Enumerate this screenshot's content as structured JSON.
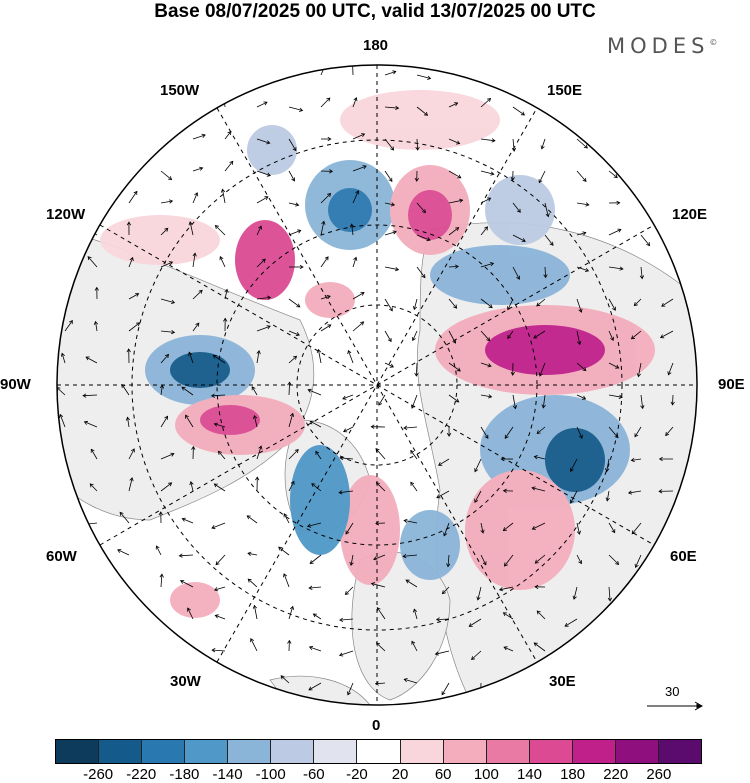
{
  "title": "Base 08/07/2025 00 UTC, valid 13/07/2025 00 UTC",
  "brand": "MODES",
  "brand_mark": "©",
  "longitude_labels": {
    "north": "180",
    "ne": "150E",
    "e1": "120E",
    "east": "90E",
    "e2": "60E",
    "se": "30E",
    "south": "0",
    "sw": "30W",
    "w2": "60W",
    "west": "90W",
    "w1": "120W",
    "nw": "150W"
  },
  "reference_vector": "30",
  "colorbar": {
    "ticks": [
      "-260",
      "-220",
      "-180",
      "-140",
      "-100",
      "-60",
      "-20",
      "20",
      "60",
      "100",
      "140",
      "180",
      "220",
      "260"
    ],
    "colors": [
      "#0d3b5c",
      "#145a8a",
      "#2a78b0",
      "#4f98c8",
      "#8bb5d8",
      "#bccbe3",
      "#e1e4ef",
      "#ffffff",
      "#f9d6dc",
      "#f3adbd",
      "#e97aa3",
      "#dc4a93",
      "#c0208a",
      "#8f0f7e",
      "#5b0a6e"
    ]
  },
  "map_colors": {
    "land": "#eeeeee",
    "ocean": "#ffffff",
    "coast": "#888888",
    "vector": "#000000"
  }
}
